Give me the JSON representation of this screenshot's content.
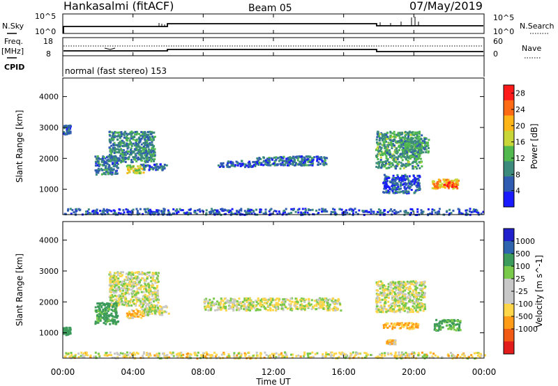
{
  "header": {
    "station": "Hankasalmi (fitACF)",
    "beam": "Beam 05",
    "date": "07/May/2019"
  },
  "noise_panel": {
    "left_label": "N.Sky",
    "right_label": "N.Search",
    "left_ticks": [
      "10^5",
      "10^0"
    ],
    "right_ticks": [
      "10^5",
      "10^0"
    ]
  },
  "freq_panel": {
    "left_label_1": "Freq.",
    "left_label_2": "[MHz]",
    "left_ticks": [
      "18",
      "8"
    ],
    "right_label": "Nave",
    "right_ticks": [
      "60",
      "0"
    ]
  },
  "cpid_panel": {
    "label": "CPID",
    "mode_text": "normal (fast stereo) 153"
  },
  "time_axis": {
    "label": "Time UT",
    "ticks": [
      "00:00",
      "04:00",
      "08:00",
      "12:00",
      "16:00",
      "20:00",
      "00:00"
    ]
  },
  "colors": {
    "power": [
      "#1a1aff",
      "#2f5cb0",
      "#3c8a7c",
      "#52b94f",
      "#c8d637",
      "#ffb417",
      "#ff6a14",
      "#ff1a1a"
    ],
    "velocity": [
      "#e21b1b",
      "#f05a14",
      "#ff9b17",
      "#ffd64a",
      "#c8c8c8",
      "#c8c8c8",
      "#79c94a",
      "#3c9a5a",
      "#2e63ae",
      "#2020cc"
    ]
  },
  "chart_data": [
    {
      "type": "heatmap",
      "name": "power-panel",
      "ylabel": "Slant Range [km]",
      "xlabel": "Time UT",
      "y_ticks": [
        "1000",
        "2000",
        "3000",
        "4000"
      ],
      "xlim_hours": [
        0,
        24
      ],
      "ylim_km": [
        180,
        4600
      ],
      "colorbar": {
        "label": "Power [dB]",
        "ticks": [
          "4",
          "8",
          "12",
          "16",
          "20",
          "24",
          "28"
        ],
        "range": [
          0,
          30
        ]
      },
      "regions": [
        {
          "t": [
            2.6,
            5.2
          ],
          "r": [
            1900,
            2900
          ],
          "value": 9
        },
        {
          "t": [
            1.8,
            3.1
          ],
          "r": [
            1500,
            2100
          ],
          "value": 8
        },
        {
          "t": [
            4.4,
            5.9
          ],
          "r": [
            1650,
            1850
          ],
          "value": 7
        },
        {
          "t": [
            3.6,
            4.6
          ],
          "r": [
            1550,
            1800
          ],
          "value": 16
        },
        {
          "t": [
            0.0,
            0.4
          ],
          "r": [
            2800,
            3100
          ],
          "value": 6
        },
        {
          "t": [
            8.8,
            11.0
          ],
          "r": [
            1750,
            1950
          ],
          "value": 6
        },
        {
          "t": [
            11.0,
            15.0
          ],
          "r": [
            1800,
            2100
          ],
          "value": 7
        },
        {
          "t": [
            17.8,
            20.4
          ],
          "r": [
            1700,
            2900
          ],
          "value": 11
        },
        {
          "t": [
            19.2,
            20.8
          ],
          "r": [
            2200,
            2700
          ],
          "value": 10
        },
        {
          "t": [
            18.2,
            20.3
          ],
          "r": [
            900,
            1500
          ],
          "value": 5
        },
        {
          "t": [
            21.0,
            22.5
          ],
          "r": [
            1050,
            1350
          ],
          "value": 21
        },
        {
          "t": [
            21.6,
            22.4
          ],
          "r": [
            1100,
            1250
          ],
          "value": 26
        },
        {
          "t": [
            0.0,
            24.0
          ],
          "r": [
            200,
            400
          ],
          "value": 5
        }
      ]
    },
    {
      "type": "heatmap",
      "name": "velocity-panel",
      "ylabel": "Slant Range [km]",
      "xlabel": "Time UT",
      "y_ticks": [
        "1000",
        "2000",
        "3000",
        "4000"
      ],
      "xlim_hours": [
        0,
        24
      ],
      "ylim_km": [
        180,
        4600
      ],
      "colorbar": {
        "label": "Velocity [m s^-1]",
        "ticks": [
          "1000",
          "500",
          "100",
          "25",
          "-25",
          "-100",
          "-500",
          "-1000"
        ],
        "range": [
          -1200,
          1200
        ]
      },
      "regions": [
        {
          "t": [
            2.6,
            5.4
          ],
          "r": [
            1900,
            3000
          ],
          "value": 0
        },
        {
          "t": [
            1.8,
            3.1
          ],
          "r": [
            1300,
            2000
          ],
          "value": 150
        },
        {
          "t": [
            3.6,
            4.6
          ],
          "r": [
            1500,
            1800
          ],
          "value": -80
        },
        {
          "t": [
            4.4,
            6.0
          ],
          "r": [
            1600,
            1900
          ],
          "value": 0
        },
        {
          "t": [
            0.0,
            0.4
          ],
          "r": [
            950,
            1200
          ],
          "value": 400
        },
        {
          "t": [
            8.0,
            15.8
          ],
          "r": [
            1750,
            2150
          ],
          "value": 0
        },
        {
          "t": [
            17.8,
            20.6
          ],
          "r": [
            1700,
            2700
          ],
          "value": 0
        },
        {
          "t": [
            18.2,
            20.2
          ],
          "r": [
            1150,
            1350
          ],
          "value": -120
        },
        {
          "t": [
            21.1,
            22.6
          ],
          "r": [
            1100,
            1450
          ],
          "value": 120
        },
        {
          "t": [
            18.4,
            18.9
          ],
          "r": [
            650,
            800
          ],
          "value": -60
        },
        {
          "t": [
            0.0,
            24.0
          ],
          "r": [
            200,
            400
          ],
          "value": -30
        }
      ]
    }
  ]
}
